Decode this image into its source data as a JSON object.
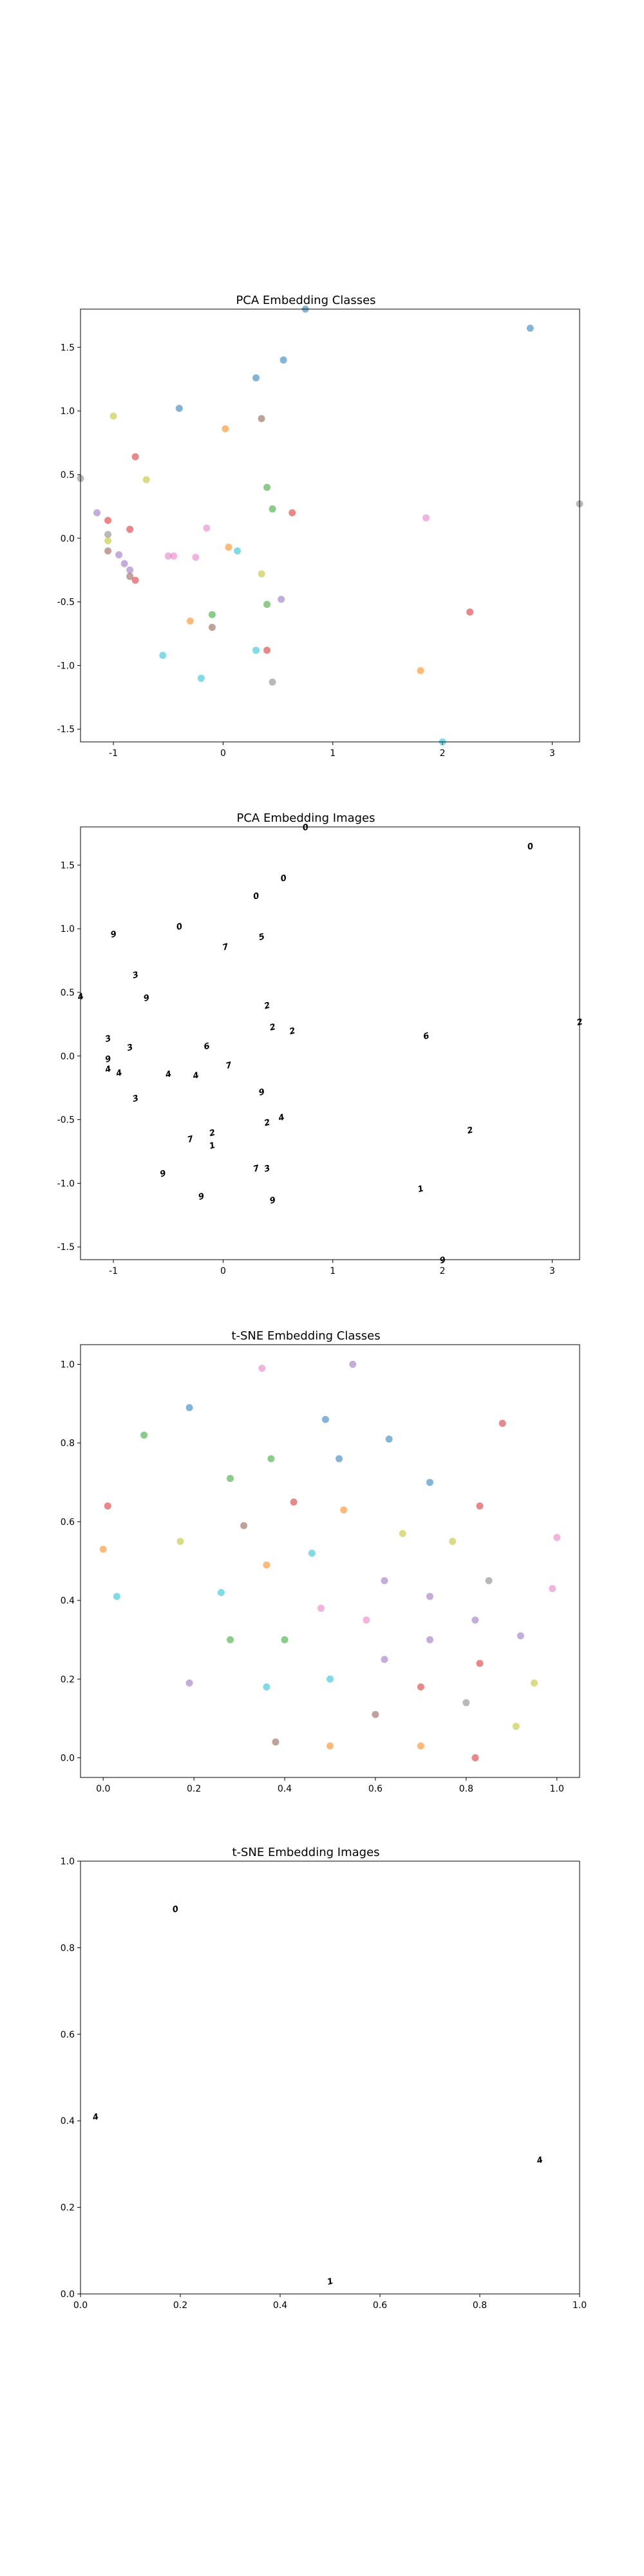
{
  "chart_data": [
    {
      "type": "scatter",
      "title": "PCA Embedding Classes",
      "xlim": [
        -1.3,
        3.25
      ],
      "ylim": [
        -1.6,
        1.8
      ],
      "xticks": [
        -1,
        0,
        1,
        2,
        3
      ],
      "yticks": [
        -1.5,
        -1.0,
        -0.5,
        0.0,
        0.5,
        1.0,
        1.5
      ],
      "points": [
        {
          "x": 2.8,
          "y": 1.65,
          "color": "#1f77b4"
        },
        {
          "x": 0.55,
          "y": 1.4,
          "color": "#1f77b4"
        },
        {
          "x": 0.3,
          "y": 1.26,
          "color": "#1f77b4"
        },
        {
          "x": -0.4,
          "y": 1.02,
          "color": "#1f77b4"
        },
        {
          "x": -1.0,
          "y": 0.96,
          "color": "#bcbd22"
        },
        {
          "x": 0.35,
          "y": 0.94,
          "color": "#8c564b"
        },
        {
          "x": 0.02,
          "y": 0.86,
          "color": "#ff7f0e"
        },
        {
          "x": -0.8,
          "y": 0.64,
          "color": "#d62728"
        },
        {
          "x": -0.7,
          "y": 0.46,
          "color": "#bcbd22"
        },
        {
          "x": -1.3,
          "y": 0.47,
          "color": "#7f7f7f"
        },
        {
          "x": 0.4,
          "y": 0.4,
          "color": "#2ca02c"
        },
        {
          "x": 3.25,
          "y": 0.27,
          "color": "#7f7f7f"
        },
        {
          "x": 0.45,
          "y": 0.23,
          "color": "#2ca02c"
        },
        {
          "x": 0.63,
          "y": 0.2,
          "color": "#d62728"
        },
        {
          "x": -1.15,
          "y": 0.2,
          "color": "#9467bd"
        },
        {
          "x": 1.85,
          "y": 0.16,
          "color": "#e377c2"
        },
        {
          "x": -1.05,
          "y": 0.14,
          "color": "#d62728"
        },
        {
          "x": -0.85,
          "y": 0.07,
          "color": "#d62728"
        },
        {
          "x": -0.15,
          "y": 0.08,
          "color": "#e377c2"
        },
        {
          "x": -1.05,
          "y": 0.03,
          "color": "#7f7f7f"
        },
        {
          "x": -1.05,
          "y": -0.02,
          "color": "#bcbd22"
        },
        {
          "x": 0.05,
          "y": -0.07,
          "color": "#ff7f0e"
        },
        {
          "x": 0.13,
          "y": -0.1,
          "color": "#17becf"
        },
        {
          "x": -1.05,
          "y": -0.1,
          "color": "#8c564b"
        },
        {
          "x": -0.95,
          "y": -0.13,
          "color": "#9467bd"
        },
        {
          "x": -0.5,
          "y": -0.14,
          "color": "#e377c2"
        },
        {
          "x": -0.45,
          "y": -0.14,
          "color": "#e377c2"
        },
        {
          "x": -0.25,
          "y": -0.15,
          "color": "#e377c2"
        },
        {
          "x": -0.9,
          "y": -0.2,
          "color": "#9467bd"
        },
        {
          "x": -0.85,
          "y": -0.25,
          "color": "#9467bd"
        },
        {
          "x": 0.35,
          "y": -0.28,
          "color": "#bcbd22"
        },
        {
          "x": -0.85,
          "y": -0.3,
          "color": "#8c564b"
        },
        {
          "x": -0.8,
          "y": -0.33,
          "color": "#d62728"
        },
        {
          "x": 0.53,
          "y": -0.48,
          "color": "#9467bd"
        },
        {
          "x": 0.4,
          "y": -0.52,
          "color": "#2ca02c"
        },
        {
          "x": 2.25,
          "y": -0.58,
          "color": "#d62728"
        },
        {
          "x": -0.1,
          "y": -0.6,
          "color": "#2ca02c"
        },
        {
          "x": -0.3,
          "y": -0.65,
          "color": "#ff7f0e"
        },
        {
          "x": -0.1,
          "y": -0.7,
          "color": "#8c564b"
        },
        {
          "x": 0.3,
          "y": -0.88,
          "color": "#17becf"
        },
        {
          "x": 0.4,
          "y": -0.88,
          "color": "#d62728"
        },
        {
          "x": -0.55,
          "y": -0.92,
          "color": "#17becf"
        },
        {
          "x": 1.8,
          "y": -1.04,
          "color": "#ff7f0e"
        },
        {
          "x": -0.2,
          "y": -1.1,
          "color": "#17becf"
        },
        {
          "x": 0.45,
          "y": -1.13,
          "color": "#7f7f7f"
        },
        {
          "x": 2.0,
          "y": -1.6,
          "color": "#17becf"
        },
        {
          "x": 0.75,
          "y": 1.8,
          "color": "#1f77b4"
        }
      ]
    },
    {
      "type": "scatter",
      "title": "PCA Embedding Images",
      "xlim": [
        -1.3,
        3.25
      ],
      "ylim": [
        -1.6,
        1.8
      ],
      "xticks": [
        -1,
        0,
        1,
        2,
        3
      ],
      "yticks": [
        -1.5,
        -1.0,
        -0.5,
        0.0,
        0.5,
        1.0,
        1.5
      ],
      "points": [
        {
          "x": 2.8,
          "y": 1.65,
          "label": "0"
        },
        {
          "x": 0.55,
          "y": 1.4,
          "label": "0"
        },
        {
          "x": 0.3,
          "y": 1.26,
          "label": "0"
        },
        {
          "x": -0.4,
          "y": 1.02,
          "label": "0"
        },
        {
          "x": -1.0,
          "y": 0.96,
          "label": "9"
        },
        {
          "x": 0.35,
          "y": 0.94,
          "label": "5"
        },
        {
          "x": 0.02,
          "y": 0.86,
          "label": "7"
        },
        {
          "x": -0.8,
          "y": 0.64,
          "label": "3"
        },
        {
          "x": -0.7,
          "y": 0.46,
          "label": "9"
        },
        {
          "x": -1.3,
          "y": 0.47,
          "label": "4"
        },
        {
          "x": 0.4,
          "y": 0.4,
          "label": "2"
        },
        {
          "x": 3.25,
          "y": 0.27,
          "label": "2"
        },
        {
          "x": 0.45,
          "y": 0.23,
          "label": "2"
        },
        {
          "x": 0.63,
          "y": 0.2,
          "label": "2"
        },
        {
          "x": 1.85,
          "y": 0.16,
          "label": "6"
        },
        {
          "x": -1.05,
          "y": 0.14,
          "label": "3"
        },
        {
          "x": -0.85,
          "y": 0.07,
          "label": "3"
        },
        {
          "x": -0.15,
          "y": 0.08,
          "label": "6"
        },
        {
          "x": -1.05,
          "y": -0.02,
          "label": "9"
        },
        {
          "x": 0.05,
          "y": -0.07,
          "label": "7"
        },
        {
          "x": -1.05,
          "y": -0.1,
          "label": "4"
        },
        {
          "x": -0.95,
          "y": -0.13,
          "label": "4"
        },
        {
          "x": -0.5,
          "y": -0.14,
          "label": "4"
        },
        {
          "x": -0.25,
          "y": -0.15,
          "label": "4"
        },
        {
          "x": 0.35,
          "y": -0.28,
          "label": "9"
        },
        {
          "x": -0.8,
          "y": -0.33,
          "label": "3"
        },
        {
          "x": 0.53,
          "y": -0.48,
          "label": "4"
        },
        {
          "x": 0.4,
          "y": -0.52,
          "label": "2"
        },
        {
          "x": 2.25,
          "y": -0.58,
          "label": "2"
        },
        {
          "x": -0.1,
          "y": -0.6,
          "label": "2"
        },
        {
          "x": -0.3,
          "y": -0.65,
          "label": "7"
        },
        {
          "x": -0.1,
          "y": -0.7,
          "label": "1"
        },
        {
          "x": 0.3,
          "y": -0.88,
          "label": "7"
        },
        {
          "x": 0.4,
          "y": -0.88,
          "label": "3"
        },
        {
          "x": -0.55,
          "y": -0.92,
          "label": "9"
        },
        {
          "x": 1.8,
          "y": -1.04,
          "label": "1"
        },
        {
          "x": -0.2,
          "y": -1.1,
          "label": "9"
        },
        {
          "x": 0.45,
          "y": -1.13,
          "label": "9"
        },
        {
          "x": 2.0,
          "y": -1.6,
          "label": "9"
        },
        {
          "x": 0.75,
          "y": 1.8,
          "label": "0"
        }
      ]
    },
    {
      "type": "scatter",
      "title": "t-SNE Embedding Classes",
      "xlim": [
        -0.05,
        1.05
      ],
      "ylim": [
        -0.05,
        1.05
      ],
      "xticks": [
        0.0,
        0.2,
        0.4,
        0.6,
        0.8,
        1.0
      ],
      "yticks": [
        0.0,
        0.2,
        0.4,
        0.6,
        0.8,
        1.0
      ],
      "points": [
        {
          "x": 0.55,
          "y": 1.0,
          "color": "#9467bd"
        },
        {
          "x": 0.35,
          "y": 0.99,
          "color": "#e377c2"
        },
        {
          "x": 0.19,
          "y": 0.89,
          "color": "#1f77b4"
        },
        {
          "x": 0.49,
          "y": 0.86,
          "color": "#1f77b4"
        },
        {
          "x": 0.88,
          "y": 0.85,
          "color": "#d62728"
        },
        {
          "x": 0.09,
          "y": 0.82,
          "color": "#2ca02c"
        },
        {
          "x": 0.63,
          "y": 0.81,
          "color": "#1f77b4"
        },
        {
          "x": 0.37,
          "y": 0.76,
          "color": "#2ca02c"
        },
        {
          "x": 0.52,
          "y": 0.76,
          "color": "#1f77b4"
        },
        {
          "x": 0.28,
          "y": 0.71,
          "color": "#2ca02c"
        },
        {
          "x": 0.72,
          "y": 0.7,
          "color": "#1f77b4"
        },
        {
          "x": 0.01,
          "y": 0.64,
          "color": "#d62728"
        },
        {
          "x": 0.42,
          "y": 0.65,
          "color": "#d62728"
        },
        {
          "x": 0.83,
          "y": 0.64,
          "color": "#d62728"
        },
        {
          "x": 0.53,
          "y": 0.63,
          "color": "#ff7f0e"
        },
        {
          "x": 0.31,
          "y": 0.59,
          "color": "#8c564b"
        },
        {
          "x": 0.66,
          "y": 0.57,
          "color": "#bcbd22"
        },
        {
          "x": 1.0,
          "y": 0.56,
          "color": "#e377c2"
        },
        {
          "x": 0.17,
          "y": 0.55,
          "color": "#bcbd22"
        },
        {
          "x": 0.77,
          "y": 0.55,
          "color": "#bcbd22"
        },
        {
          "x": 0.0,
          "y": 0.53,
          "color": "#ff7f0e"
        },
        {
          "x": 0.46,
          "y": 0.52,
          "color": "#17becf"
        },
        {
          "x": 0.36,
          "y": 0.49,
          "color": "#ff7f0e"
        },
        {
          "x": 0.62,
          "y": 0.45,
          "color": "#9467bd"
        },
        {
          "x": 0.85,
          "y": 0.45,
          "color": "#7f7f7f"
        },
        {
          "x": 0.99,
          "y": 0.43,
          "color": "#e377c2"
        },
        {
          "x": 0.26,
          "y": 0.42,
          "color": "#17becf"
        },
        {
          "x": 0.03,
          "y": 0.41,
          "color": "#17becf"
        },
        {
          "x": 0.72,
          "y": 0.41,
          "color": "#9467bd"
        },
        {
          "x": 0.48,
          "y": 0.38,
          "color": "#e377c2"
        },
        {
          "x": 0.58,
          "y": 0.35,
          "color": "#e377c2"
        },
        {
          "x": 0.82,
          "y": 0.35,
          "color": "#9467bd"
        },
        {
          "x": 0.92,
          "y": 0.31,
          "color": "#9467bd"
        },
        {
          "x": 0.28,
          "y": 0.3,
          "color": "#2ca02c"
        },
        {
          "x": 0.4,
          "y": 0.3,
          "color": "#2ca02c"
        },
        {
          "x": 0.72,
          "y": 0.3,
          "color": "#9467bd"
        },
        {
          "x": 0.62,
          "y": 0.25,
          "color": "#9467bd"
        },
        {
          "x": 0.83,
          "y": 0.24,
          "color": "#d62728"
        },
        {
          "x": 0.5,
          "y": 0.2,
          "color": "#17becf"
        },
        {
          "x": 0.95,
          "y": 0.19,
          "color": "#bcbd22"
        },
        {
          "x": 0.19,
          "y": 0.19,
          "color": "#9467bd"
        },
        {
          "x": 0.36,
          "y": 0.18,
          "color": "#17becf"
        },
        {
          "x": 0.7,
          "y": 0.18,
          "color": "#d62728"
        },
        {
          "x": 0.8,
          "y": 0.14,
          "color": "#7f7f7f"
        },
        {
          "x": 0.6,
          "y": 0.11,
          "color": "#8c564b"
        },
        {
          "x": 0.91,
          "y": 0.08,
          "color": "#bcbd22"
        },
        {
          "x": 0.38,
          "y": 0.04,
          "color": "#8c564b"
        },
        {
          "x": 0.5,
          "y": 0.03,
          "color": "#ff7f0e"
        },
        {
          "x": 0.7,
          "y": 0.03,
          "color": "#ff7f0e"
        },
        {
          "x": 0.82,
          "y": 0.0,
          "color": "#d62728"
        }
      ]
    },
    {
      "type": "scatter",
      "title": "t-SNE Embedding Images",
      "xlim": [
        0.0,
        1.0
      ],
      "ylim": [
        0.0,
        1.0
      ],
      "xticks": [
        0.0,
        0.2,
        0.4,
        0.6,
        0.8,
        1.0
      ],
      "yticks": [
        0.0,
        0.2,
        0.4,
        0.6,
        0.8,
        1.0
      ],
      "points": [
        {
          "x": 0.19,
          "y": 0.89,
          "label": "0"
        },
        {
          "x": 0.03,
          "y": 0.41,
          "label": "4"
        },
        {
          "x": 0.92,
          "y": 0.31,
          "label": "4"
        },
        {
          "x": 0.5,
          "y": 0.03,
          "label": "1"
        }
      ]
    }
  ]
}
